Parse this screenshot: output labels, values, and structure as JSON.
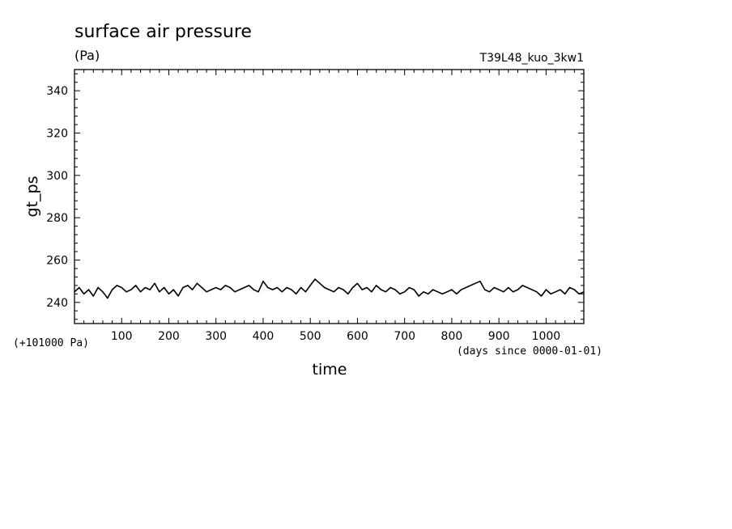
{
  "chart_data": {
    "type": "line",
    "title": "surface air pressure",
    "units": "(Pa)",
    "run_label": "T39L48_kuo_3kw1",
    "xlabel": "time",
    "ylabel": "gt_ps",
    "x_unit_note": "(days since 0000-01-01)",
    "y_offset_note": "(+101000 Pa)",
    "xlim": [
      0,
      1080
    ],
    "ylim": [
      230,
      350
    ],
    "x_ticks": [
      "100",
      "200",
      "300",
      "400",
      "500",
      "600",
      "700",
      "800",
      "900",
      "1000"
    ],
    "y_ticks": [
      "240",
      "260",
      "280",
      "300",
      "320",
      "340"
    ],
    "series": [
      {
        "x": [
          0,
          10,
          20,
          30,
          40,
          50,
          60,
          70,
          80,
          90,
          100,
          110,
          120,
          130,
          140,
          150,
          160,
          170,
          180,
          190,
          200,
          210,
          220,
          230,
          240,
          250,
          260,
          270,
          280,
          290,
          300,
          310,
          320,
          330,
          340,
          350,
          360,
          370,
          380,
          390,
          400,
          410,
          420,
          430,
          440,
          450,
          460,
          470,
          480,
          490,
          500,
          510,
          520,
          530,
          540,
          550,
          560,
          570,
          580,
          590,
          600,
          610,
          620,
          630,
          640,
          650,
          660,
          670,
          680,
          690,
          700,
          710,
          720,
          730,
          740,
          750,
          760,
          770,
          780,
          790,
          800,
          810,
          820,
          830,
          840,
          850,
          860,
          870,
          880,
          890,
          900,
          910,
          920,
          930,
          940,
          950,
          960,
          970,
          980,
          990,
          1000,
          1010,
          1020,
          1030,
          1040,
          1050,
          1060,
          1070,
          1080
        ],
        "y": [
          245,
          247,
          244,
          246,
          243,
          247,
          245,
          242,
          246,
          248,
          247,
          245,
          246,
          248,
          245,
          247,
          246,
          249,
          245,
          247,
          244,
          246,
          243,
          247,
          248,
          246,
          249,
          247,
          245,
          246,
          247,
          246,
          248,
          247,
          245,
          246,
          247,
          248,
          246,
          245,
          250,
          247,
          246,
          247,
          245,
          247,
          246,
          244,
          247,
          245,
          248,
          251,
          249,
          247,
          246,
          245,
          247,
          246,
          244,
          247,
          249,
          246,
          247,
          245,
          248,
          246,
          245,
          247,
          246,
          244,
          245,
          247,
          246,
          243,
          245,
          244,
          246,
          245,
          244,
          245,
          246,
          244,
          246,
          247,
          248,
          249,
          250,
          246,
          245,
          247,
          246,
          245,
          247,
          245,
          246,
          248,
          247,
          246,
          245,
          243,
          246,
          244,
          245,
          246,
          244,
          247,
          246,
          244,
          245
        ]
      }
    ]
  }
}
